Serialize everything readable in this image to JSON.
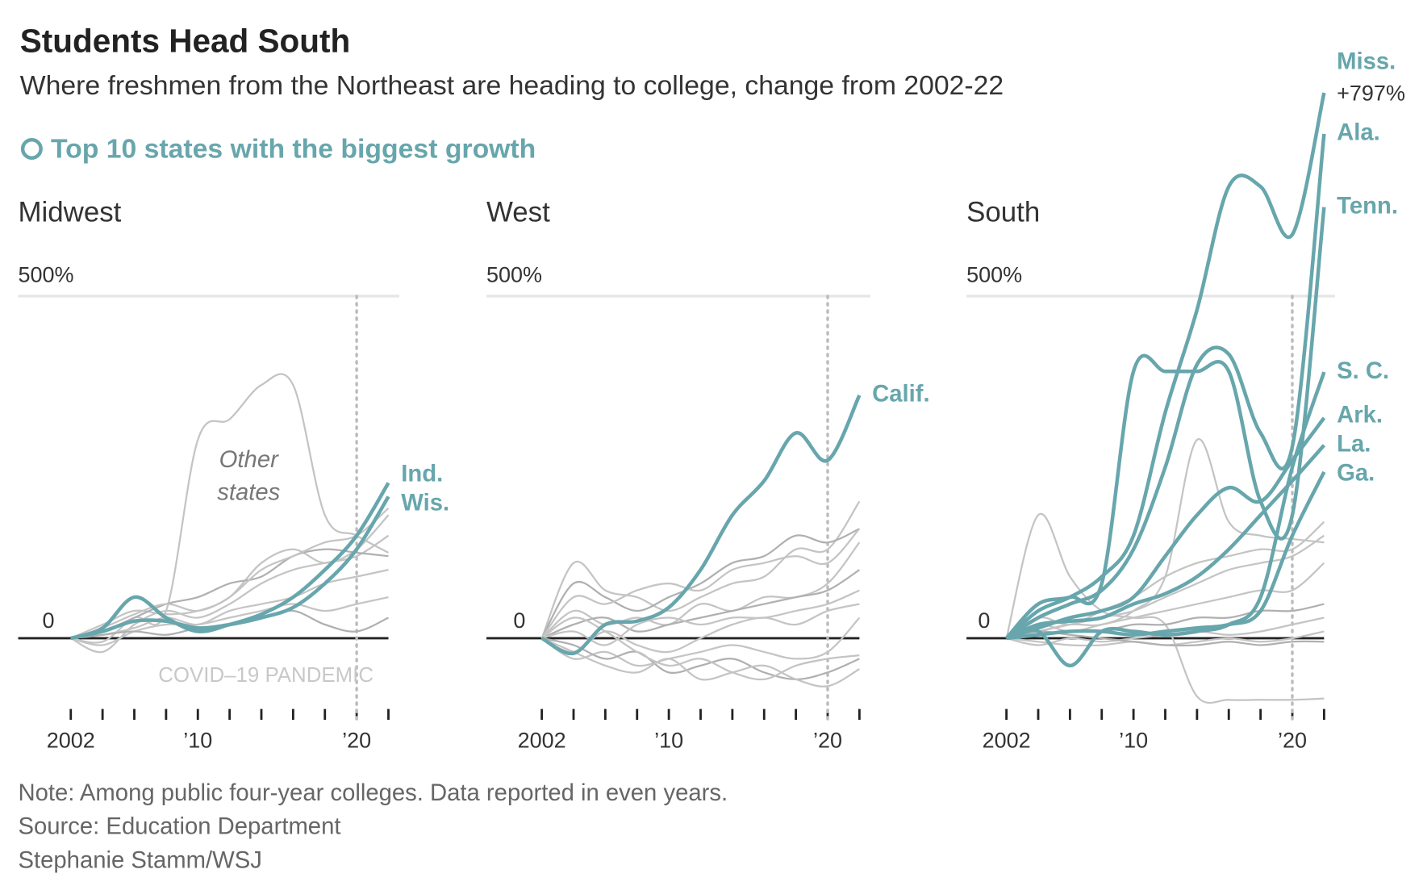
{
  "header": {
    "title": "Students Head South",
    "subtitle": "Where freshmen from the Northeast are heading to college, change from 2002-22",
    "legend": "Top 10 states with the biggest growth",
    "legend_color": "#67a6ac"
  },
  "chart_data": [
    {
      "type": "line",
      "title": "Midwest",
      "x": [
        2002,
        2004,
        2006,
        2008,
        2010,
        2012,
        2014,
        2016,
        2018,
        2020,
        2022
      ],
      "xlim": [
        2002,
        2022
      ],
      "xticks": [
        {
          "value": 2002,
          "label": "2002"
        },
        {
          "value": 2010,
          "label": "’10"
        },
        {
          "value": 2020,
          "label": "’20"
        }
      ],
      "xminorticks": [
        2002,
        2004,
        2006,
        2008,
        2010,
        2012,
        2014,
        2016,
        2018,
        2020,
        2022
      ],
      "ylim": [
        -110,
        800
      ],
      "yticks": [
        0,
        {
          "value": 500,
          "label": "500%"
        }
      ],
      "event_line": {
        "x": 2020,
        "label": "COVID–19 PANDEMIC"
      },
      "annotation": [
        "Other",
        "states"
      ],
      "series": [
        {
          "color": "#c4c4c4",
          "values": [
            0,
            -5,
            30,
            40,
            290,
            320,
            370,
            370,
            180,
            150,
            125
          ]
        },
        {
          "color": "#c4c4c4",
          "values": [
            0,
            20,
            40,
            35,
            40,
            60,
            110,
            130,
            110,
            130,
            180
          ]
        },
        {
          "color": "#c4c4c4",
          "values": [
            0,
            -20,
            20,
            40,
            30,
            50,
            80,
            100,
            110,
            120,
            150
          ]
        },
        {
          "color": "#b0b0b0",
          "values": [
            0,
            10,
            30,
            50,
            60,
            80,
            90,
            120,
            130,
            125,
            120
          ]
        },
        {
          "color": "#c4c4c4",
          "values": [
            0,
            5,
            15,
            30,
            20,
            40,
            50,
            60,
            80,
            90,
            100
          ]
        },
        {
          "color": "#c4c4c4",
          "values": [
            0,
            -10,
            10,
            20,
            20,
            30,
            40,
            50,
            40,
            50,
            60
          ]
        },
        {
          "color": "#b0b0b0",
          "values": [
            0,
            5,
            10,
            5,
            15,
            20,
            30,
            40,
            20,
            10,
            30
          ]
        },
        {
          "color": "#c4c4c4",
          "values": [
            0,
            15,
            35,
            50,
            40,
            60,
            100,
            120,
            140,
            150,
            190
          ]
        },
        {
          "name": "Ind.",
          "color": "#67a6ac",
          "values": [
            0,
            15,
            60,
            30,
            10,
            20,
            35,
            60,
            100,
            150,
            227
          ]
        },
        {
          "name": "Wis.",
          "color": "#67a6ac",
          "values": [
            0,
            10,
            25,
            25,
            15,
            20,
            30,
            45,
            80,
            130,
            207
          ]
        }
      ]
    },
    {
      "type": "line",
      "title": "West",
      "x": [
        2002,
        2004,
        2006,
        2008,
        2010,
        2012,
        2014,
        2016,
        2018,
        2020,
        2022
      ],
      "xlim": [
        2002,
        2022
      ],
      "xticks": [
        {
          "value": 2002,
          "label": "2002"
        },
        {
          "value": 2010,
          "label": "’10"
        },
        {
          "value": 2020,
          "label": "’20"
        }
      ],
      "xminorticks": [
        2002,
        2004,
        2006,
        2008,
        2010,
        2012,
        2014,
        2016,
        2018,
        2020,
        2022
      ],
      "ylim": [
        -110,
        800
      ],
      "yticks": [
        0,
        {
          "value": 500,
          "label": "500%"
        }
      ],
      "event_line": {
        "x": 2020
      },
      "series": [
        {
          "color": "#c4c4c4",
          "values": [
            0,
            110,
            70,
            60,
            40,
            60,
            80,
            90,
            130,
            130,
            200
          ]
        },
        {
          "color": "#b0b0b0",
          "values": [
            0,
            80,
            60,
            40,
            60,
            80,
            110,
            120,
            150,
            140,
            160
          ]
        },
        {
          "color": "#c4c4c4",
          "values": [
            0,
            60,
            50,
            70,
            80,
            70,
            100,
            110,
            120,
            110,
            160
          ]
        },
        {
          "color": "#c4c4c4",
          "values": [
            0,
            40,
            20,
            30,
            20,
            50,
            40,
            60,
            60,
            80,
            140
          ]
        },
        {
          "color": "#b0b0b0",
          "values": [
            0,
            20,
            30,
            10,
            20,
            30,
            40,
            50,
            60,
            70,
            100
          ]
        },
        {
          "color": "#c4c4c4",
          "values": [
            0,
            10,
            -10,
            20,
            30,
            20,
            30,
            30,
            40,
            50,
            70
          ]
        },
        {
          "color": "#c4c4c4",
          "values": [
            0,
            -20,
            10,
            -10,
            -20,
            0,
            20,
            30,
            20,
            40,
            50
          ]
        },
        {
          "color": "#c4c4c4",
          "values": [
            0,
            -30,
            -20,
            -40,
            -30,
            -20,
            -10,
            -20,
            -30,
            -20,
            30
          ]
        },
        {
          "color": "#b0b0b0",
          "values": [
            0,
            -10,
            -30,
            -20,
            -50,
            -40,
            -30,
            -50,
            -60,
            -50,
            -30
          ]
        },
        {
          "color": "#c4c4c4",
          "values": [
            0,
            30,
            10,
            -20,
            -40,
            -30,
            -50,
            -60,
            -40,
            -30,
            -25
          ]
        },
        {
          "color": "#c4c4c4",
          "values": [
            0,
            -20,
            -40,
            -50,
            -30,
            -60,
            -50,
            -40,
            -60,
            -70,
            -45
          ]
        },
        {
          "name": "Calif.",
          "color": "#67a6ac",
          "values": [
            0,
            -22,
            20,
            25,
            45,
            100,
            180,
            230,
            300,
            260,
            355
          ]
        }
      ]
    },
    {
      "type": "line",
      "title": "South",
      "x": [
        2002,
        2004,
        2006,
        2008,
        2010,
        2012,
        2014,
        2016,
        2018,
        2020,
        2022
      ],
      "xlim": [
        2002,
        2022
      ],
      "xticks": [
        {
          "value": 2002,
          "label": "2002"
        },
        {
          "value": 2010,
          "label": "’10"
        },
        {
          "value": 2020,
          "label": "’20"
        }
      ],
      "xminorticks": [
        2002,
        2004,
        2006,
        2008,
        2010,
        2012,
        2014,
        2016,
        2018,
        2020,
        2022
      ],
      "ylim": [
        -110,
        800
      ],
      "yticks": [
        0,
        {
          "value": 500,
          "label": "500%"
        }
      ],
      "event_line": {
        "x": 2020
      },
      "series": [
        {
          "color": "#c4c4c4",
          "values": [
            0,
            180,
            90,
            40,
            30,
            20,
            -85,
            -90,
            -90,
            -90,
            -88
          ]
        },
        {
          "color": "#c4c4c4",
          "values": [
            0,
            10,
            20,
            20,
            40,
            90,
            290,
            170,
            150,
            145,
            140
          ]
        },
        {
          "color": "#c4c4c4",
          "values": [
            0,
            30,
            20,
            40,
            60,
            90,
            110,
            120,
            130,
            130,
            170
          ]
        },
        {
          "color": "#c4c4c4",
          "values": [
            0,
            10,
            20,
            30,
            40,
            60,
            80,
            100,
            110,
            120,
            150
          ]
        },
        {
          "color": "#c4c4c4",
          "values": [
            0,
            20,
            10,
            20,
            30,
            40,
            50,
            60,
            70,
            70,
            110
          ]
        },
        {
          "color": "#b0b0b0",
          "values": [
            0,
            5,
            10,
            10,
            20,
            20,
            30,
            30,
            40,
            40,
            50
          ]
        },
        {
          "color": "#c4c4c4",
          "values": [
            0,
            -10,
            0,
            -5,
            0,
            5,
            10,
            5,
            10,
            20,
            30
          ]
        },
        {
          "color": "#c4c4c4",
          "values": [
            0,
            -5,
            -10,
            -10,
            -5,
            -10,
            -5,
            0,
            -5,
            0,
            10
          ]
        },
        {
          "color": "#b0b0b0",
          "values": [
            0,
            10,
            5,
            0,
            -5,
            -10,
            -10,
            -5,
            -10,
            -5,
            -5
          ]
        },
        {
          "name": "Miss.",
          "color": "#67a6ac",
          "values": [
            0,
            40,
            60,
            90,
            150,
            330,
            480,
            660,
            660,
            590,
            797
          ],
          "value_labels": [
            null,
            null,
            null,
            null,
            null,
            null,
            null,
            null,
            null,
            null,
            "+797%"
          ]
        },
        {
          "name": "Ala.",
          "color": "#67a6ac",
          "values": [
            0,
            30,
            50,
            70,
            130,
            250,
            400,
            415,
            300,
            280,
            737
          ]
        },
        {
          "name": "Tenn.",
          "color": "#67a6ac",
          "values": [
            0,
            50,
            60,
            80,
            390,
            390,
            390,
            390,
            200,
            180,
            630
          ]
        },
        {
          "name": "S. C.",
          "color": "#67a6ac",
          "values": [
            0,
            10,
            -40,
            10,
            10,
            5,
            10,
            20,
            60,
            250,
            389
          ]
        },
        {
          "name": "Ark.",
          "color": "#67a6ac",
          "values": [
            0,
            15,
            30,
            40,
            60,
            120,
            180,
            220,
            200,
            260,
            322
          ]
        },
        {
          "name": "La.",
          "color": "#67a6ac",
          "values": [
            0,
            20,
            25,
            30,
            50,
            65,
            90,
            130,
            180,
            230,
            282
          ]
        },
        {
          "name": "Ga.",
          "color": "#67a6ac",
          "values": [
            0,
            5,
            10,
            10,
            5,
            10,
            15,
            20,
            40,
            150,
            243
          ]
        }
      ]
    }
  ],
  "footer": {
    "note": "Note: Among public four-year colleges. Data reported in even years.",
    "source": "Source: Education Department",
    "credit": "Stephanie Stamm/WSJ"
  }
}
